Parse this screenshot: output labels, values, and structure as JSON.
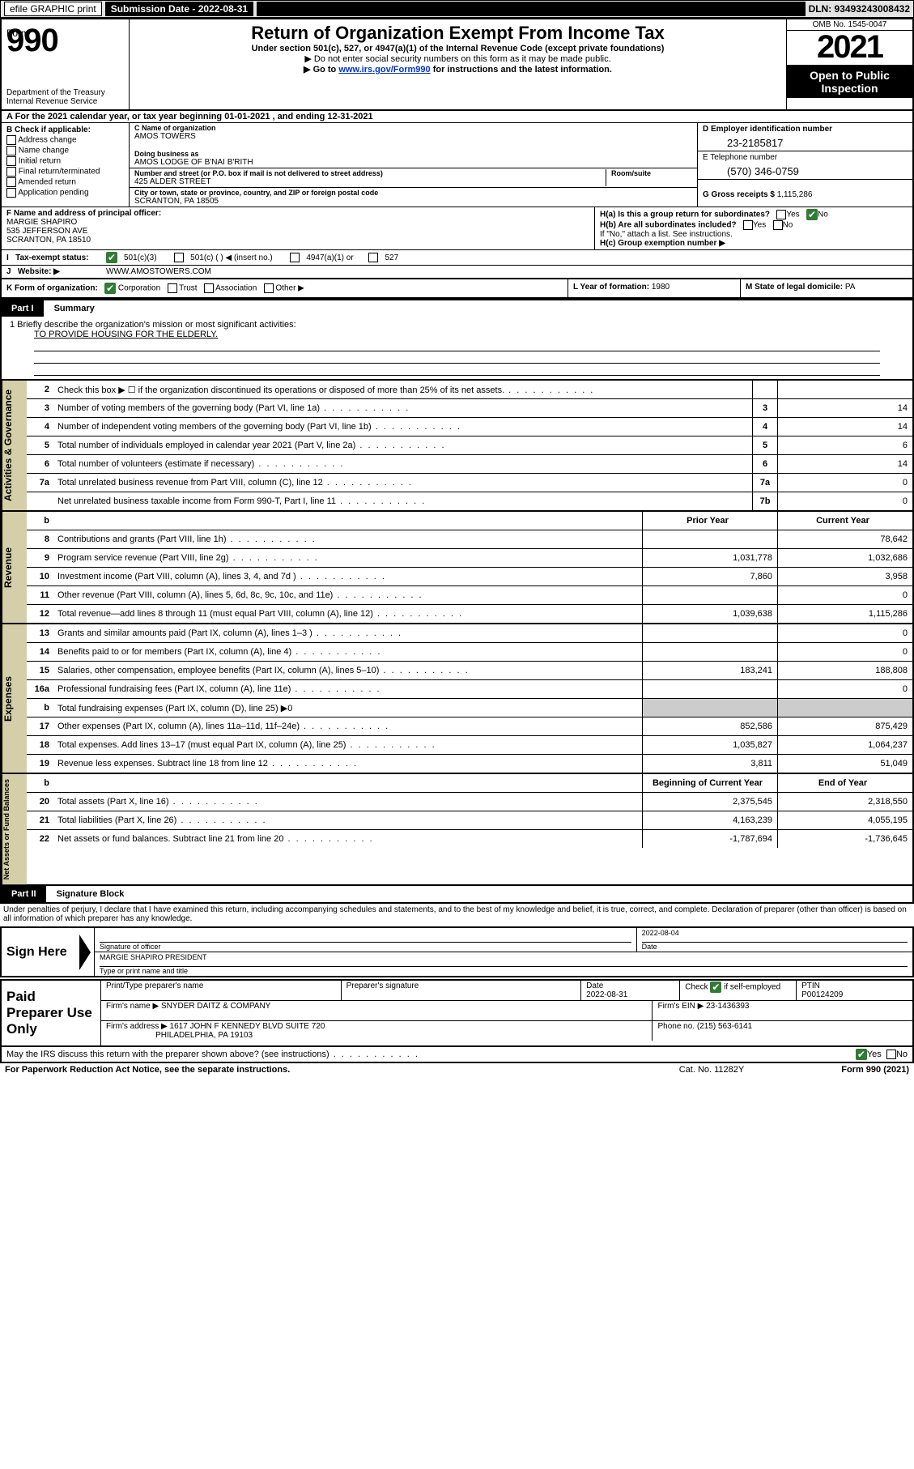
{
  "top": {
    "efile": "efile GRAPHIC print",
    "submission_label": "Submission Date - 2022-08-31",
    "dln_label": "DLN: 93493243008432"
  },
  "header": {
    "form_word": "Form",
    "form_no": "990",
    "title": "Return of Organization Exempt From Income Tax",
    "subtitle": "Under section 501(c), 527, or 4947(a)(1) of the Internal Revenue Code (except private foundations)",
    "note1": "▶ Do not enter social security numbers on this form as it may be made public.",
    "note2_pre": "▶ Go to ",
    "note2_link": "www.irs.gov/Form990",
    "note2_post": " for instructions and the latest information.",
    "dept": "Department of the Treasury",
    "irs": "Internal Revenue Service",
    "omb": "OMB No. 1545-0047",
    "year": "2021",
    "public1": "Open to Public",
    "public2": "Inspection"
  },
  "period": {
    "text": "A For the 2021 calendar year, or tax year beginning 01-01-2021    , and ending 12-31-2021"
  },
  "colB": {
    "label": "B Check if applicable:",
    "opts": [
      "Address change",
      "Name change",
      "Initial return",
      "Final return/terminated",
      "Amended return",
      "Application pending"
    ]
  },
  "colC": {
    "name_lbl": "C Name of organization",
    "name": "AMOS TOWERS",
    "dba_lbl": "Doing business as",
    "dba": "AMOS LODGE OF B'NAI B'RITH",
    "street_lbl": "Number and street (or P.O. box if mail is not delivered to street address)",
    "street": "425 ALDER STREET",
    "room_lbl": "Room/suite",
    "city_lbl": "City or town, state or province, country, and ZIP or foreign postal code",
    "city": "SCRANTON, PA  18505"
  },
  "colD": {
    "ein_lbl": "D Employer identification number",
    "ein": "23-2185817",
    "phone_lbl": "E Telephone number",
    "phone": "(570) 346-0759",
    "gross_lbl": "G Gross receipts $ ",
    "gross": "1,115,286"
  },
  "fh": {
    "f_lbl": "F Name and address of principal officer:",
    "f_name": "MARGIE SHAPIRO",
    "f_addr1": "535 JEFFERSON AVE",
    "f_addr2": "SCRANTON, PA  18510",
    "ha": "H(a)  Is this a group return for subordinates?",
    "ha_yes": "Yes",
    "ha_no": "No",
    "hb": "H(b)  Are all subordinates included?",
    "hb_yes": "Yes",
    "hb_no": "No",
    "hb_note": "If \"No,\" attach a list. See instructions.",
    "hc": "H(c)  Group exemption number ▶"
  },
  "i": {
    "lbl": "Tax-exempt status:",
    "o1": "501(c)(3)",
    "o2": "501(c) (   ) ◀ (insert no.)",
    "o3": "4947(a)(1) or",
    "o4": "527"
  },
  "j": {
    "lbl": "Website: ▶",
    "val": "WWW.AMOSTOWERS.COM"
  },
  "k": {
    "lbl": "K Form of organization:",
    "o1": "Corporation",
    "o2": "Trust",
    "o3": "Association",
    "o4": "Other ▶"
  },
  "l": {
    "lbl": "L Year of formation: ",
    "val": "1980"
  },
  "m": {
    "lbl": "M State of legal domicile: ",
    "val": "PA"
  },
  "part1": {
    "num": "Part I",
    "title": "Summary"
  },
  "mission": {
    "q1": "1  Briefly describe the organization's mission or most significant activities:",
    "text": "TO PROVIDE HOUSING FOR THE ELDERLY."
  },
  "gov": {
    "tab": "Activities & Governance",
    "rows": [
      {
        "n": "2",
        "d": "Check this box ▶ ☐  if the organization discontinued its operations or disposed of more than 25% of its net assets.",
        "box": "",
        "v": ""
      },
      {
        "n": "3",
        "d": "Number of voting members of the governing body (Part VI, line 1a)",
        "box": "3",
        "v": "14"
      },
      {
        "n": "4",
        "d": "Number of independent voting members of the governing body (Part VI, line 1b)",
        "box": "4",
        "v": "14"
      },
      {
        "n": "5",
        "d": "Total number of individuals employed in calendar year 2021 (Part V, line 2a)",
        "box": "5",
        "v": "6"
      },
      {
        "n": "6",
        "d": "Total number of volunteers (estimate if necessary)",
        "box": "6",
        "v": "14"
      },
      {
        "n": "7a",
        "d": "Total unrelated business revenue from Part VIII, column (C), line 12",
        "box": "7a",
        "v": "0"
      },
      {
        "n": "",
        "d": "Net unrelated business taxable income from Form 990-T, Part I, line 11",
        "box": "7b",
        "v": "0"
      }
    ]
  },
  "two_col_hdr": {
    "prior": "Prior Year",
    "current": "Current Year",
    "beg": "Beginning of Current Year",
    "end": "End of Year"
  },
  "rev": {
    "tab": "Revenue",
    "rows": [
      {
        "n": "8",
        "d": "Contributions and grants (Part VIII, line 1h)",
        "p": "",
        "c": "78,642"
      },
      {
        "n": "9",
        "d": "Program service revenue (Part VIII, line 2g)",
        "p": "1,031,778",
        "c": "1,032,686"
      },
      {
        "n": "10",
        "d": "Investment income (Part VIII, column (A), lines 3, 4, and 7d )",
        "p": "7,860",
        "c": "3,958"
      },
      {
        "n": "11",
        "d": "Other revenue (Part VIII, column (A), lines 5, 6d, 8c, 9c, 10c, and 11e)",
        "p": "",
        "c": "0"
      },
      {
        "n": "12",
        "d": "Total revenue—add lines 8 through 11 (must equal Part VIII, column (A), line 12)",
        "p": "1,039,638",
        "c": "1,115,286"
      }
    ]
  },
  "exp": {
    "tab": "Expenses",
    "rows": [
      {
        "n": "13",
        "d": "Grants and similar amounts paid (Part IX, column (A), lines 1–3 )",
        "p": "",
        "c": "0"
      },
      {
        "n": "14",
        "d": "Benefits paid to or for members (Part IX, column (A), line 4)",
        "p": "",
        "c": "0"
      },
      {
        "n": "15",
        "d": "Salaries, other compensation, employee benefits (Part IX, column (A), lines 5–10)",
        "p": "183,241",
        "c": "188,808"
      },
      {
        "n": "16a",
        "d": "Professional fundraising fees (Part IX, column (A), line 11e)",
        "p": "",
        "c": "0"
      },
      {
        "n": "b",
        "d": "Total fundraising expenses (Part IX, column (D), line 25) ▶0",
        "p": null,
        "c": null
      },
      {
        "n": "17",
        "d": "Other expenses (Part IX, column (A), lines 11a–11d, 11f–24e)",
        "p": "852,586",
        "c": "875,429"
      },
      {
        "n": "18",
        "d": "Total expenses. Add lines 13–17 (must equal Part IX, column (A), line 25)",
        "p": "1,035,827",
        "c": "1,064,237"
      },
      {
        "n": "19",
        "d": "Revenue less expenses. Subtract line 18 from line 12",
        "p": "3,811",
        "c": "51,049"
      }
    ]
  },
  "net": {
    "tab": "Net Assets or Fund Balances",
    "rows": [
      {
        "n": "20",
        "d": "Total assets (Part X, line 16)",
        "p": "2,375,545",
        "c": "2,318,550"
      },
      {
        "n": "21",
        "d": "Total liabilities (Part X, line 26)",
        "p": "4,163,239",
        "c": "4,055,195"
      },
      {
        "n": "22",
        "d": "Net assets or fund balances. Subtract line 21 from line 20",
        "p": "-1,787,694",
        "c": "-1,736,645"
      }
    ]
  },
  "part2": {
    "num": "Part II",
    "title": "Signature Block"
  },
  "penalties": "Under penalties of perjury, I declare that I have examined this return, including accompanying schedules and statements, and to the best of my knowledge and belief, it is true, correct, and complete. Declaration of preparer (other than officer) is based on all information of which preparer has any knowledge.",
  "sign": {
    "label": "Sign Here",
    "sig_lbl": "Signature of officer",
    "date_lbl": "Date",
    "date": "2022-08-04",
    "name": "MARGIE SHAPIRO  PRESIDENT",
    "name_lbl": "Type or print name and title"
  },
  "prep": {
    "label": "Paid Preparer Use Only",
    "r1c1": "Print/Type preparer's name",
    "r1c2": "Preparer's signature",
    "r1c3_lbl": "Date",
    "r1c3": "2022-08-31",
    "r1c4_lbl": "Check",
    "r1c4_suf": "if self-employed",
    "r1c5_lbl": "PTIN",
    "r1c5": "P00124209",
    "r2_lbl": "Firm's name    ▶ ",
    "r2": "SNYDER DAITZ & COMPANY",
    "r2b_lbl": "Firm's EIN ▶ ",
    "r2b": "23-1436393",
    "r3_lbl": "Firm's address ▶ ",
    "r3a": "1617 JOHN F KENNEDY BLVD SUITE 720",
    "r3b": "PHILADELPHIA, PA  19103",
    "r3c_lbl": "Phone no. ",
    "r3c": "(215) 563-6141"
  },
  "may": {
    "q": "May the IRS discuss this return with the preparer shown above? (see instructions)",
    "yes": "Yes",
    "no": "No"
  },
  "footer": {
    "f1": "For Paperwork Reduction Act Notice, see the separate instructions.",
    "f2": "Cat. No. 11282Y",
    "f3": "Form 990 (2021)"
  }
}
